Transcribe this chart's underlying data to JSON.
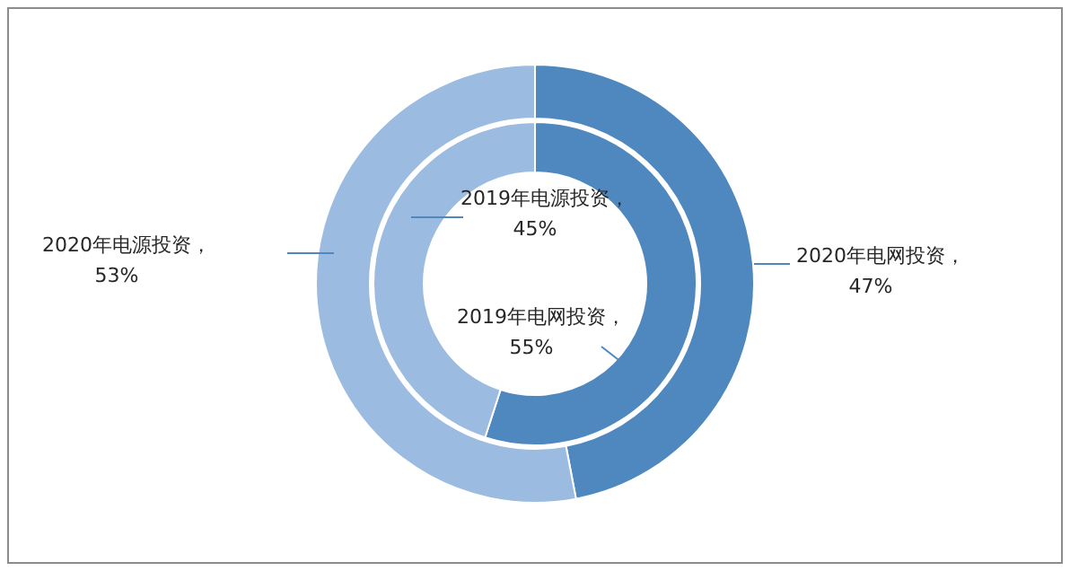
{
  "chart_data": [
    {
      "type": "donut",
      "categories": [
        "2020年电网投资",
        "2020年电源投资"
      ],
      "values": [
        47,
        53
      ],
      "value_labels": [
        "，47%",
        "，53%"
      ],
      "colors": [
        "#4f87bf",
        "#9cbbe0"
      ]
    },
    {
      "type": "donut",
      "categories": [
        "2019年电网投资",
        "2019年电源投资"
      ],
      "values": [
        55,
        45
      ],
      "value_labels": [
        "，55%",
        "，45%"
      ],
      "colors": [
        "#4f87bf",
        "#9cbbe0"
      ]
    }
  ]
}
